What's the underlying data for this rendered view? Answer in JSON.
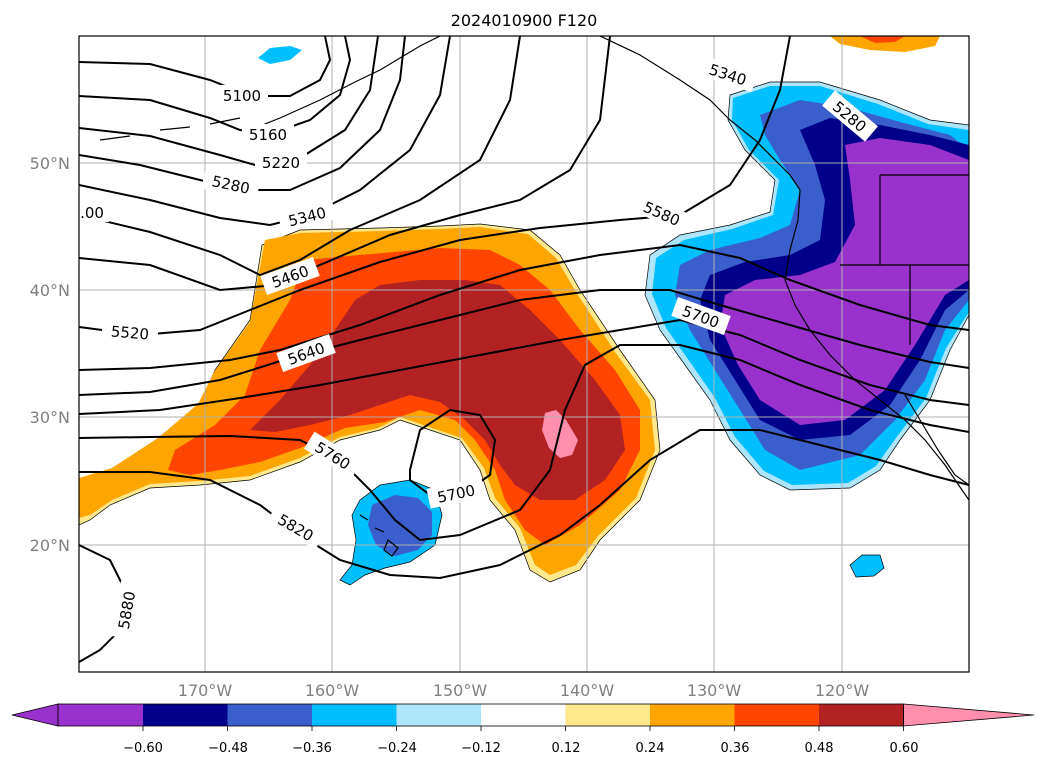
{
  "title": "2024010900 F120",
  "latitude_labels": [
    "50°N",
    "40°N",
    "30°N",
    "20°N"
  ],
  "longitude_labels": [
    "170°W",
    "160°W",
    "150°W",
    "140°W",
    "130°W",
    "120°W"
  ],
  "contour_labels": [
    "5100",
    "5160",
    "5220",
    "5280",
    "5340",
    ".00",
    "5460",
    "5520",
    "5640",
    "5760",
    "5700",
    "5820",
    "5880",
    "5340",
    "5280",
    "5580",
    "5700"
  ],
  "colorbar": {
    "tick_labels": [
      "−0.60",
      "−0.48",
      "−0.36",
      "−0.24",
      "−0.12",
      "0.12",
      "0.24",
      "0.36",
      "0.48",
      "0.60"
    ],
    "colors": [
      "#9932cc",
      "#00008b",
      "#3a5fcd",
      "#00bfff",
      "#ade5fb",
      "#ffffff",
      "#ffe98c",
      "#ffa500",
      "#ff4500",
      "#b22222",
      "#ff8fad"
    ]
  },
  "map_data": {
    "lon_range": [
      -180,
      -110
    ],
    "lat_range": [
      10,
      60
    ],
    "field": "500 hPa geopotential height (contours, m) with shaded anomaly"
  }
}
